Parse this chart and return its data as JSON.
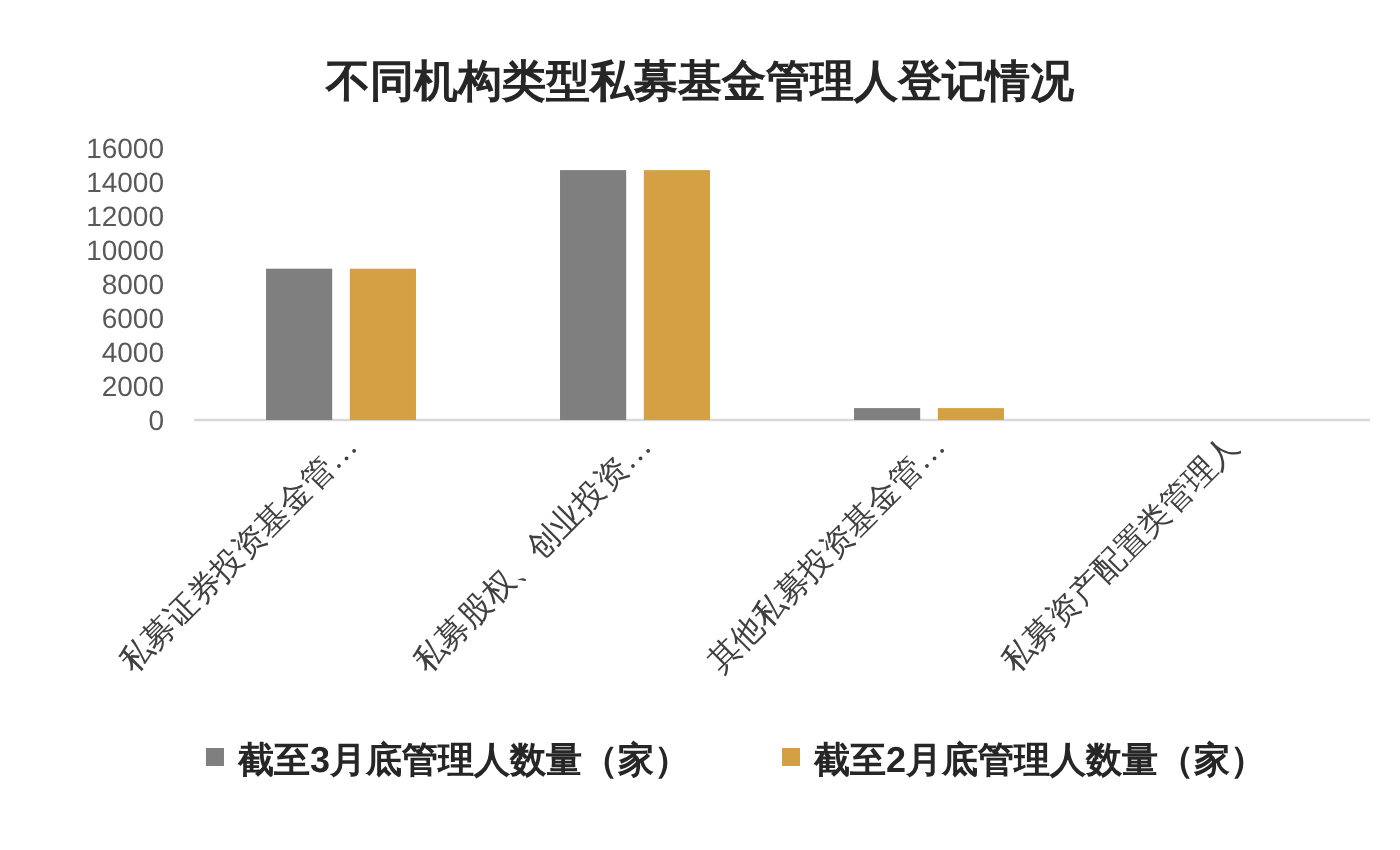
{
  "chart_data": {
    "type": "bar",
    "title": "不同机构类型私募基金管理人登记情况",
    "categories": [
      "私募证券投资基金管…",
      "私募股权、创业投资…",
      "其他私募投资基金管…",
      "私募资产配置类管理人"
    ],
    "series": [
      {
        "name": "截至3月底管理人数量（家）",
        "color": "#7f7f7f",
        "values": [
          8900,
          14700,
          700,
          0
        ]
      },
      {
        "name": "截至2月底管理人数量（家）",
        "color": "#d4a043",
        "values": [
          8900,
          14700,
          700,
          0
        ]
      }
    ],
    "ylim": [
      0,
      16000
    ],
    "yticks": [
      0,
      2000,
      4000,
      6000,
      8000,
      10000,
      12000,
      14000,
      16000
    ],
    "legend": "bottom"
  }
}
